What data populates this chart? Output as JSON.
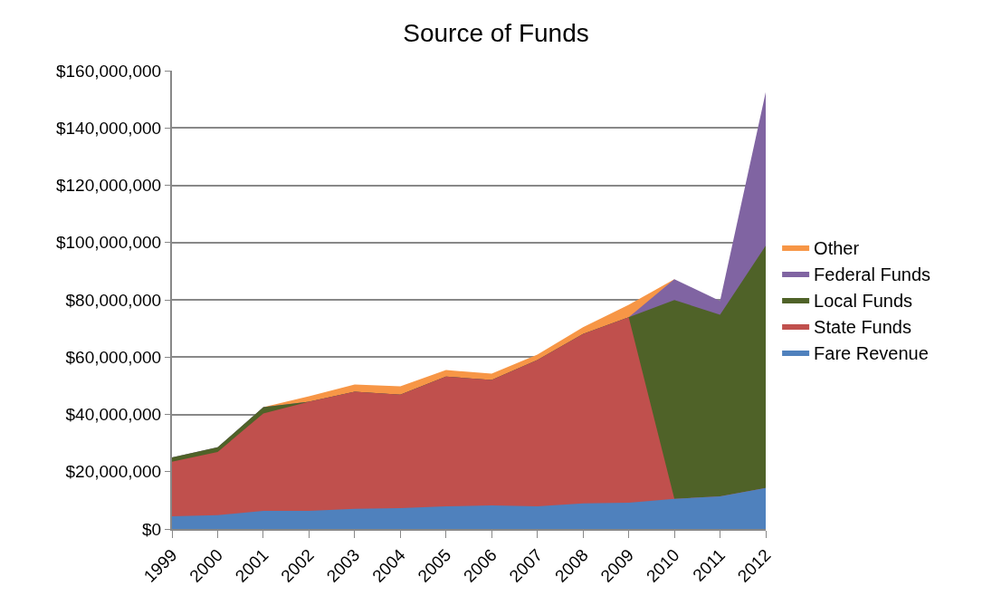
{
  "chart_data": {
    "type": "area",
    "stacked": true,
    "title": "Source of Funds",
    "categories": [
      "1999",
      "2000",
      "2001",
      "2002",
      "2003",
      "2004",
      "2005",
      "2006",
      "2007",
      "2008",
      "2009",
      "2010",
      "2011",
      "2012"
    ],
    "series": [
      {
        "name": "Fare Revenue",
        "color": "#4f81bd",
        "values": [
          4400000,
          4800000,
          6300000,
          6300000,
          7000000,
          7300000,
          7900000,
          8200000,
          7900000,
          8900000,
          9200000,
          10500000,
          11400000,
          14300000
        ]
      },
      {
        "name": "State Funds",
        "color": "#c0504d",
        "values": [
          19100000,
          22100000,
          34000000,
          38100000,
          40900000,
          39600000,
          45300000,
          43800000,
          51100000,
          59200000,
          64700000,
          0,
          0,
          0
        ]
      },
      {
        "name": "Local Funds",
        "color": "#4f6228",
        "values": [
          1500000,
          1600000,
          2200000,
          0,
          0,
          0,
          0,
          0,
          0,
          0,
          0,
          69400000,
          63400000,
          84600000
        ]
      },
      {
        "name": "Federal Funds",
        "color": "#8064a2",
        "values": [
          0,
          0,
          0,
          0,
          0,
          0,
          0,
          0,
          0,
          0,
          0,
          7300000,
          4800000,
          53600000
        ]
      },
      {
        "name": "Other",
        "color": "#f79646",
        "values": [
          null,
          null,
          0,
          1900000,
          2500000,
          2900000,
          2300000,
          2200000,
          1900000,
          2300000,
          4400000,
          0,
          null,
          null
        ]
      }
    ],
    "ylim": [
      0,
      160000000
    ],
    "yticks": [
      {
        "value": 0,
        "label": "$0"
      },
      {
        "value": 20000000,
        "label": "$20,000,000"
      },
      {
        "value": 40000000,
        "label": "$40,000,000"
      },
      {
        "value": 60000000,
        "label": "$60,000,000"
      },
      {
        "value": 80000000,
        "label": "$80,000,000"
      },
      {
        "value": 100000000,
        "label": "$100,000,000"
      },
      {
        "value": 120000000,
        "label": "$120,000,000"
      },
      {
        "value": 140000000,
        "label": "$140,000,000"
      },
      {
        "value": 160000000,
        "label": "$160,000,000"
      }
    ],
    "grid": "y",
    "legend": "right"
  }
}
